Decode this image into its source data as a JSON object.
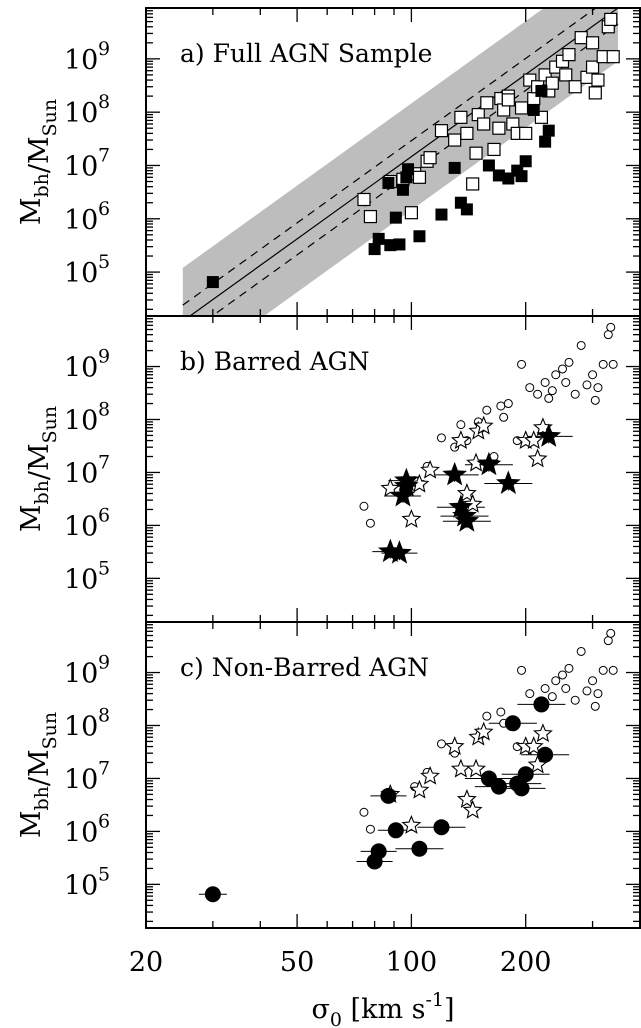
{
  "chart_data": [
    {
      "type": "scatter",
      "panel_label": "a) Full AGN Sample",
      "xlabel": "",
      "ylabel": "M_bh/M_Sun",
      "xscale": "log",
      "yscale": "log",
      "xlim": [
        20,
        400
      ],
      "ylim": [
        15000,
        9000000000
      ],
      "x_ticks": [],
      "y_ticks": [
        "5",
        "6",
        "7",
        "8",
        "9"
      ],
      "band": {
        "description": "grey scatter band around fitted relation",
        "fit_line": [
          [
            25,
            12000
          ],
          [
            350,
            9000000000
          ]
        ],
        "dashed_offsets_dex": [
          0.3,
          -0.3
        ],
        "band_halfwidth_dex": 1.0
      },
      "series": [
        {
          "marker": "open-square",
          "points": [
            [
              75,
              2300000
            ],
            [
              78,
              1100000
            ],
            [
              88,
              5000000
            ],
            [
              95,
              5500000
            ],
            [
              100,
              1300000
            ],
            [
              102,
              7000000
            ],
            [
              105,
              6000000
            ],
            [
              110,
              12000000
            ],
            [
              112,
              14000000
            ],
            [
              120,
              45000000
            ],
            [
              130,
              30000000
            ],
            [
              135,
              80000000
            ],
            [
              140,
              40000000
            ],
            [
              145,
              4500000
            ],
            [
              148,
              17000000
            ],
            [
              150,
              90000000
            ],
            [
              155,
              60000000
            ],
            [
              158,
              150000000
            ],
            [
              165,
              20000000
            ],
            [
              170,
              50000000
            ],
            [
              172,
              180000000
            ],
            [
              175,
              110000000
            ],
            [
              180,
              200000000
            ],
            [
              185,
              60000000
            ],
            [
              190,
              40000000
            ],
            [
              195,
              120000000
            ],
            [
              200,
              40000000
            ],
            [
              205,
              400000000
            ],
            [
              210,
              180000000
            ],
            [
              215,
              300000000
            ],
            [
              220,
              80000000
            ],
            [
              225,
              500000000
            ],
            [
              230,
              250000000
            ],
            [
              235,
              350000000
            ],
            [
              240,
              700000000
            ],
            [
              250,
              900000000
            ],
            [
              255,
              500000000
            ],
            [
              260,
              1200000000
            ],
            [
              270,
              300000000
            ],
            [
              280,
              2500000000
            ],
            [
              290,
              450000000
            ],
            [
              300,
              700000000
            ],
            [
              305,
              230000000
            ],
            [
              310,
              400000000
            ],
            [
              320,
              1100000000
            ],
            [
              330,
              4000000000
            ],
            [
              335,
              5500000000
            ],
            [
              340,
              1100000000
            ],
            [
              300,
              2000000000
            ],
            [
              180,
              170000000
            ]
          ]
        },
        {
          "marker": "filled-square",
          "points": [
            [
              30,
              65000
            ],
            [
              80,
              270000
            ],
            [
              82,
              420000
            ],
            [
              87,
              4700000
            ],
            [
              88,
              320000
            ],
            [
              91,
              1050000
            ],
            [
              93,
              330000
            ],
            [
              95,
              3500000
            ],
            [
              97,
              6000000
            ],
            [
              98,
              8500000
            ],
            [
              105,
              470000
            ],
            [
              120,
              1200000
            ],
            [
              130,
              9000000
            ],
            [
              135,
              2000000
            ],
            [
              140,
              1500000
            ],
            [
              160,
              10000000
            ],
            [
              170,
              6500000
            ],
            [
              180,
              5700000
            ],
            [
              190,
              8000000
            ],
            [
              195,
              6300000
            ],
            [
              200,
              12000000
            ],
            [
              210,
              110000000
            ],
            [
              220,
              250000000
            ],
            [
              225,
              28000000
            ],
            [
              230,
              45000000
            ]
          ]
        }
      ]
    },
    {
      "type": "scatter",
      "panel_label": "b) Barred AGN",
      "xlabel": "",
      "ylabel": "M_bh/M_Sun",
      "xscale": "log",
      "yscale": "log",
      "xlim": [
        20,
        400
      ],
      "ylim": [
        15000,
        9000000000
      ],
      "x_ticks": [],
      "y_ticks": [
        "5",
        "6",
        "7",
        "8",
        "9"
      ],
      "series": [
        {
          "marker": "small-open-circle",
          "points": [
            [
              75,
              2300000
            ],
            [
              78,
              1100000
            ],
            [
              102,
              7000000
            ],
            [
              110,
              13000000
            ],
            [
              120,
              45000000
            ],
            [
              130,
              30000000
            ],
            [
              135,
              80000000
            ],
            [
              140,
              40000000
            ],
            [
              150,
              90000000
            ],
            [
              158,
              150000000
            ],
            [
              165,
              20000000
            ],
            [
              172,
              180000000
            ],
            [
              175,
              110000000
            ],
            [
              180,
              200000000
            ],
            [
              190,
              40000000
            ],
            [
              195,
              1100000000
            ],
            [
              205,
              400000000
            ],
            [
              215,
              300000000
            ],
            [
              225,
              500000000
            ],
            [
              230,
              250000000
            ],
            [
              235,
              350000000
            ],
            [
              240,
              700000000
            ],
            [
              250,
              900000000
            ],
            [
              255,
              500000000
            ],
            [
              260,
              1200000000
            ],
            [
              270,
              300000000
            ],
            [
              280,
              2500000000
            ],
            [
              290,
              450000000
            ],
            [
              300,
              700000000
            ],
            [
              305,
              230000000
            ],
            [
              310,
              400000000
            ],
            [
              320,
              1100000000
            ],
            [
              330,
              4000000000
            ],
            [
              335,
              5500000000
            ],
            [
              340,
              1100000000
            ]
          ]
        },
        {
          "marker": "open-star",
          "points": [
            [
              88,
              5000000
            ],
            [
              100,
              1300000
            ],
            [
              105,
              6000000
            ],
            [
              112,
              11000000
            ],
            [
              140,
              4000000
            ],
            [
              145,
              2500000
            ],
            [
              148,
              15000000
            ],
            [
              150,
              60000000
            ],
            [
              155,
              75000000
            ],
            [
              160,
              15000000
            ],
            [
              200,
              40000000
            ],
            [
              210,
              40000000
            ],
            [
              222,
              70000000
            ],
            [
              215,
              18000000
            ],
            [
              135,
              40000000
            ]
          ]
        },
        {
          "marker": "filled-star",
          "points": [
            [
              88,
              320000
            ],
            [
              93,
              300000
            ],
            [
              95,
              3600000
            ],
            [
              97,
              7000000
            ],
            [
              97,
              5500000
            ],
            [
              130,
              9000000
            ],
            [
              135,
              2200000
            ],
            [
              138,
              1500000
            ],
            [
              140,
              1200000
            ],
            [
              160,
              14000000
            ],
            [
              180,
              6200000
            ],
            [
              230,
              48000000
            ]
          ]
        }
      ]
    },
    {
      "type": "scatter",
      "panel_label": "c) Non-Barred AGN",
      "xlabel": "σ_0 [km s^-1]",
      "ylabel": "M_bh/M_Sun",
      "xscale": "log",
      "yscale": "log",
      "xlim": [
        20,
        400
      ],
      "ylim": [
        15000,
        9000000000
      ],
      "x_ticks": [
        "20",
        "50",
        "100",
        "200"
      ],
      "y_ticks": [
        "5",
        "6",
        "7",
        "8",
        "9"
      ],
      "series": [
        {
          "marker": "small-open-circle",
          "points": [
            [
              75,
              2300000
            ],
            [
              78,
              1100000
            ],
            [
              102,
              7000000
            ],
            [
              110,
              13000000
            ],
            [
              120,
              45000000
            ],
            [
              130,
              30000000
            ],
            [
              158,
              150000000
            ],
            [
              172,
              180000000
            ],
            [
              175,
              110000000
            ],
            [
              190,
              40000000
            ],
            [
              195,
              1100000000
            ],
            [
              205,
              400000000
            ],
            [
              225,
              500000000
            ],
            [
              235,
              350000000
            ],
            [
              240,
              700000000
            ],
            [
              250,
              900000000
            ],
            [
              255,
              500000000
            ],
            [
              260,
              1200000000
            ],
            [
              270,
              300000000
            ],
            [
              280,
              2500000000
            ],
            [
              290,
              450000000
            ],
            [
              300,
              700000000
            ],
            [
              305,
              230000000
            ],
            [
              310,
              400000000
            ],
            [
              320,
              1100000000
            ],
            [
              330,
              4000000000
            ],
            [
              335,
              5500000000
            ],
            [
              340,
              1100000000
            ]
          ]
        },
        {
          "marker": "open-star",
          "points": [
            [
              88,
              5000000
            ],
            [
              100,
              1300000
            ],
            [
              105,
              6000000
            ],
            [
              112,
              11000000
            ],
            [
              130,
              40000000
            ],
            [
              135,
              15000000
            ],
            [
              140,
              4000000
            ],
            [
              145,
              2500000
            ],
            [
              148,
              15000000
            ],
            [
              150,
              60000000
            ],
            [
              155,
              75000000
            ],
            [
              200,
              40000000
            ],
            [
              210,
              40000000
            ],
            [
              222,
              70000000
            ],
            [
              215,
              18000000
            ]
          ]
        },
        {
          "marker": "filled-circle",
          "points": [
            [
              30,
              65000
            ],
            [
              80,
              270000
            ],
            [
              82,
              420000
            ],
            [
              87,
              4700000
            ],
            [
              91,
              1050000
            ],
            [
              105,
              470000
            ],
            [
              120,
              1200000
            ],
            [
              160,
              10000000
            ],
            [
              170,
              7000000
            ],
            [
              190,
              8000000
            ],
            [
              195,
              6500000
            ],
            [
              200,
              12000000
            ],
            [
              185,
              110000000
            ],
            [
              220,
              250000000
            ],
            [
              225,
              28000000
            ]
          ]
        }
      ]
    }
  ]
}
